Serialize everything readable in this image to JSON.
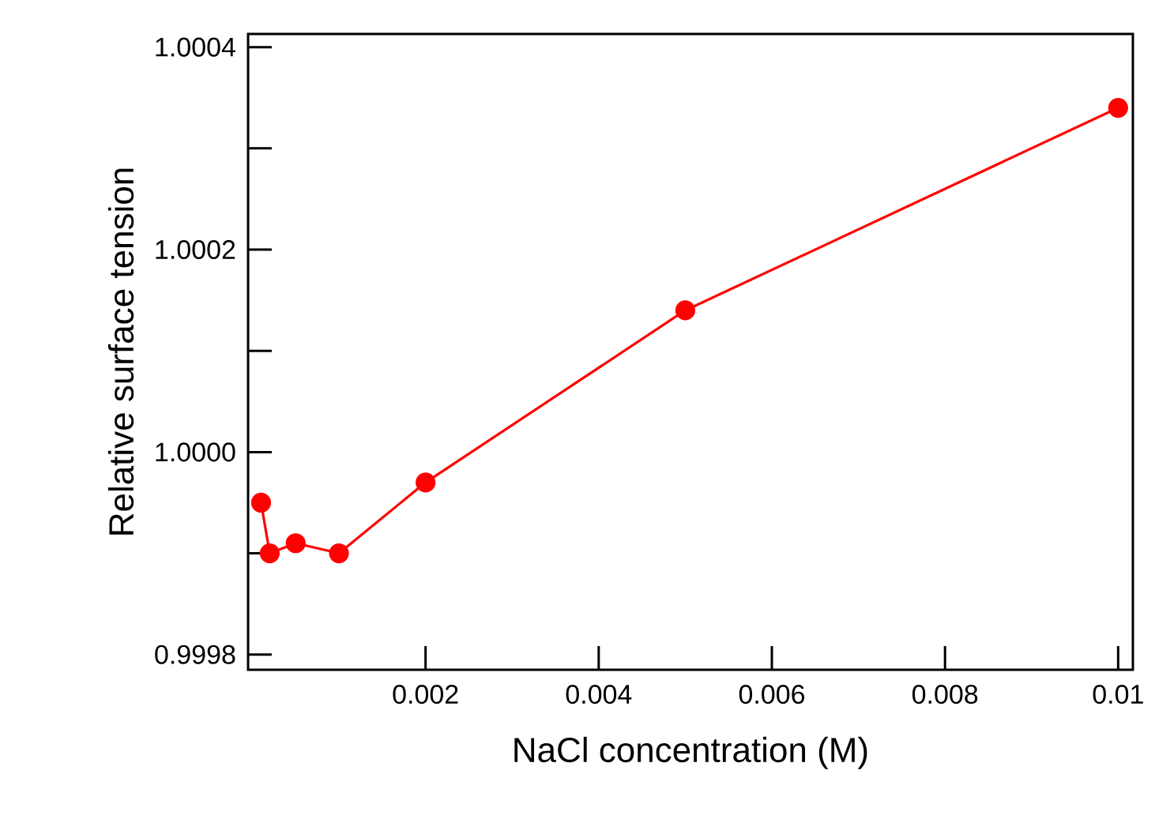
{
  "chart_data": {
    "type": "line",
    "xlabel": "NaCl concentration (M)",
    "ylabel": "Relative surface tension",
    "x": [
      0.0001,
      0.0002,
      0.0005,
      0.001,
      0.002,
      0.005,
      0.01
    ],
    "series": [
      {
        "color": "#ff0000",
        "values": [
          0.99995,
          0.9999,
          0.99991,
          0.9999,
          0.99997,
          1.00014,
          1.00034
        ]
      }
    ],
    "xlim": [
      -5e-05,
      0.01017
    ],
    "ylim": [
      0.999785,
      1.000413
    ],
    "xticks": [
      0.002,
      0.004,
      0.006,
      0.008,
      0.01
    ],
    "yticks": [
      {
        "value": 0.9998,
        "label": "0.9998"
      },
      {
        "value": 0.9999,
        "label": null
      },
      {
        "value": 1.0,
        "label": "1.0000"
      },
      {
        "value": 1.0001,
        "label": null
      },
      {
        "value": 1.0002,
        "label": "1.0002"
      },
      {
        "value": 1.0003,
        "label": null
      },
      {
        "value": 1.0004,
        "label": "1.0004"
      }
    ],
    "grid": false,
    "marker": "circle",
    "line_style": "solid"
  }
}
